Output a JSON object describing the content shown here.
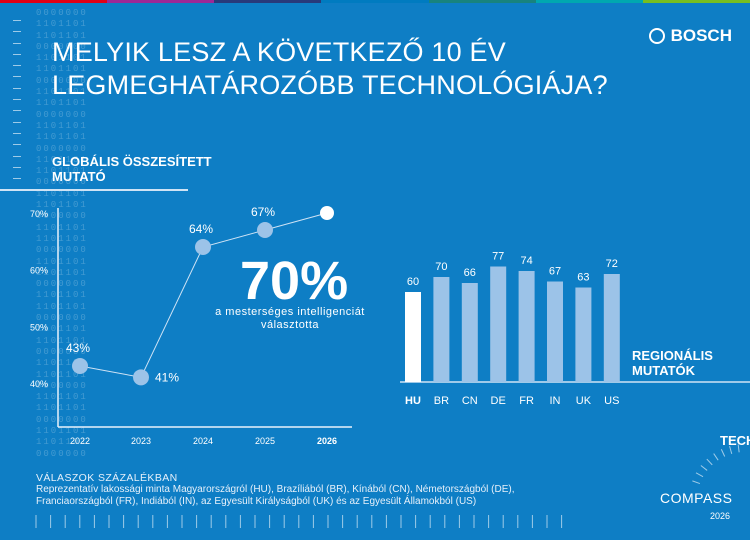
{
  "brand": {
    "name": "BOSCH",
    "stripe_colors": [
      "#e20015",
      "#9e2896",
      "#28397a",
      "#007bc0",
      "#18837e",
      "#00a8b0",
      "#78be20"
    ]
  },
  "title_lines": [
    "MELYIK LESZ A KÖVETKEZŐ 10 ÉV",
    "LEGMEGHATÁROZÓBB TECHNOLÓGIÁJA?"
  ],
  "global_label_lines": [
    "GLOBÁLIS ÖSSZESÍTETT",
    "MUTATÓ"
  ],
  "regional_label_lines": [
    "REGIONÁLIS",
    "MUTATÓK"
  ],
  "highlight": {
    "value": "70%",
    "caption_lines": [
      "a mesterséges intelligenciát",
      "választotta"
    ]
  },
  "footer": {
    "heading": "VÁLASZOK SZÁZALÉKBAN",
    "lines": [
      "Reprezentatív lakossági minta Magyarországról (HU), Brazíliából (BR), Kínából (CN), Németországból (DE),",
      "Franciaországból (FR), Indiából (IN), az Egyesült Királyságból (UK) és az Egyesült Államokból (US)"
    ]
  },
  "tech_compass": {
    "tech": "TECH",
    "compass": "COMPASS",
    "year": "2026"
  },
  "chart_data": [
    {
      "type": "line",
      "x": [
        "2022",
        "2023",
        "2024",
        "2025",
        "2026"
      ],
      "values": [
        43,
        41,
        64,
        67,
        70
      ],
      "data_labels": [
        "43%",
        "41%",
        "64%",
        "67%",
        ""
      ],
      "yticks": [
        "40%",
        "50%",
        "60%",
        "70%"
      ],
      "ylim": [
        40,
        70
      ],
      "grid": false,
      "highlight_point": "2026",
      "colors": {
        "point": "#9cc3e8",
        "highlight": "#ffffff"
      }
    },
    {
      "type": "bar",
      "categories": [
        "HU",
        "BR",
        "CN",
        "DE",
        "FR",
        "IN",
        "UK",
        "US"
      ],
      "values": [
        60,
        70,
        66,
        77,
        74,
        67,
        63,
        72
      ],
      "ylim": [
        0,
        77
      ],
      "highlight_category": "HU",
      "colors": {
        "bar": "#9cc3e8",
        "highlight": "#ffffff"
      }
    }
  ]
}
